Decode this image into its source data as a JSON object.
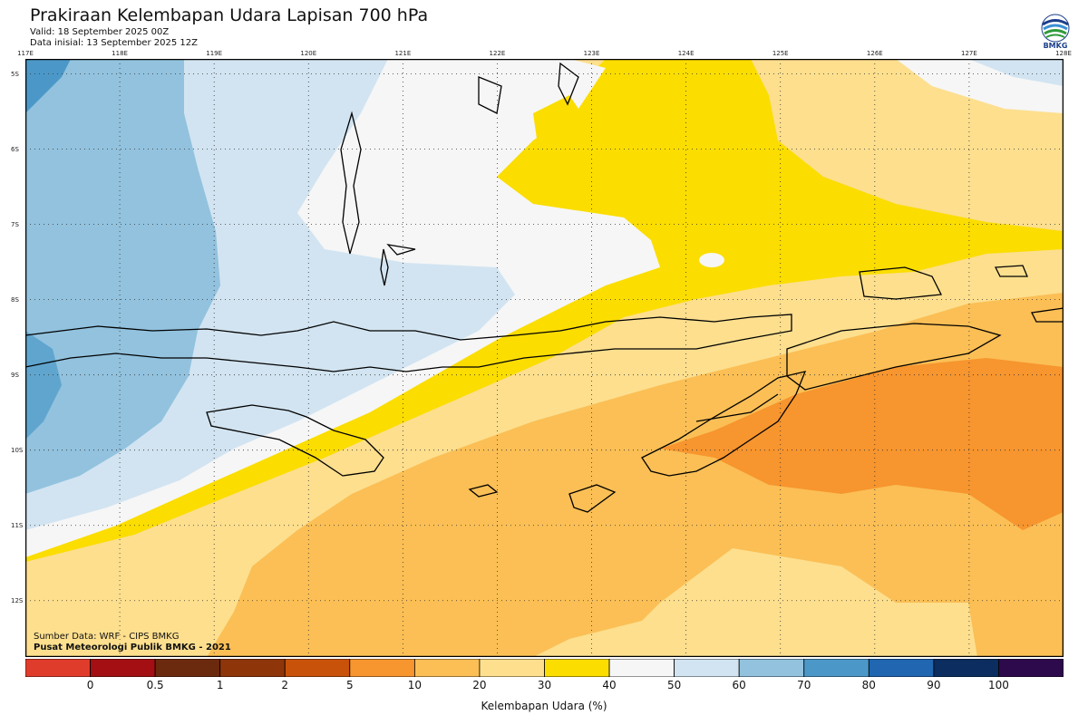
{
  "header": {
    "title": "Prakiraan Kelembapan Udara Lapisan 700 hPa",
    "valid": "Valid: 18 September 2025 00Z",
    "init": "Data inisial: 13 September 2025 12Z"
  },
  "logo": {
    "text": "BMKG"
  },
  "map": {
    "lon_labels": [
      "117E",
      "118E",
      "119E",
      "120E",
      "121E",
      "122E",
      "123E",
      "124E",
      "125E",
      "126E",
      "127E",
      "128E"
    ],
    "lat_labels": [
      "5S",
      "6S",
      "7S",
      "8S",
      "9S",
      "10S",
      "11S",
      "12S"
    ],
    "lon_range": [
      117,
      128
    ],
    "lat_range": [
      4.8,
      12.75
    ]
  },
  "footer": {
    "source": "Sumber Data: WRF - CIPS BMKG",
    "org": "Pusat Meteorologi Publik BMKG - 2021"
  },
  "legend": {
    "title": "Kelembapan Udara (%)",
    "labels": [
      "0",
      "0.5",
      "1",
      "2",
      "5",
      "10",
      "20",
      "30",
      "40",
      "50",
      "60",
      "70",
      "80",
      "90",
      "100"
    ],
    "colors": [
      "#e03c2b",
      "#a30f12",
      "#6b2a0e",
      "#8e350a",
      "#c8520a",
      "#f7952e",
      "#fbbf55",
      "#fddf8e",
      "#fbdd00",
      "#f6f6f6",
      "#d2e4f1",
      "#92c2de",
      "#4b98c8",
      "#2066b0",
      "#0b2d5f",
      "#2d0a4b"
    ],
    "band_colors": {
      "10-20": "#fbbf55",
      "20-30": "#fddf8e",
      "30-40": "#fbdd00",
      "40-50": "#f6f6f6",
      "50-60": "#d2e4f1",
      "60-70": "#92c2de",
      "70-80": "#4b98c8",
      "5-10": "#f7952e"
    }
  }
}
